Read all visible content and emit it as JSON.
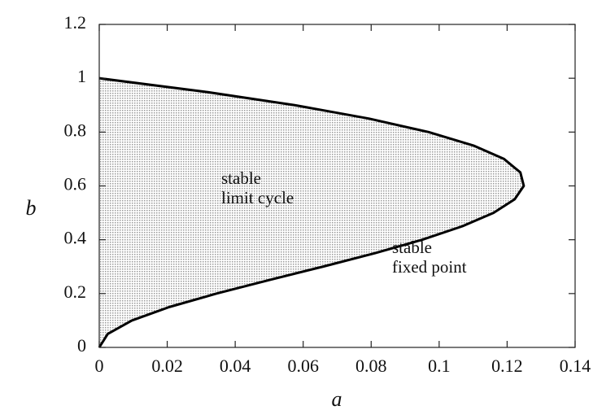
{
  "chart_data": {
    "type": "area",
    "x_label": "a",
    "y_label": "b",
    "x": [
      0,
      0.0025,
      0.0096,
      0.0206,
      0.0345,
      0.0499,
      0.0658,
      0.0811,
      0.095,
      0.1068,
      0.116,
      0.1222,
      0.1249,
      0.1239,
      0.1191,
      0.1101,
      0.0969,
      0.0794,
      0.0575,
      0.031,
      0
    ],
    "values": [
      0,
      0.05,
      0.1,
      0.15,
      0.2,
      0.25,
      0.3,
      0.35,
      0.4,
      0.45,
      0.5,
      0.55,
      0.6,
      0.65,
      0.7,
      0.75,
      0.8,
      0.85,
      0.9,
      0.95,
      1
    ],
    "color": "#000000",
    "fill_color": "#9a9a9a",
    "xlim": [
      0,
      0.14
    ],
    "xticks": [
      0,
      0.02,
      0.04,
      0.06,
      0.08,
      0.1,
      0.12,
      0.14
    ],
    "ylim": [
      0,
      1.2
    ],
    "yticks": [
      0,
      0.2,
      0.4,
      0.6,
      0.8,
      1,
      1.2
    ],
    "annotations": [
      [
        "stable",
        "limit cycle"
      ],
      [
        "stable",
        "fixed point"
      ]
    ]
  }
}
